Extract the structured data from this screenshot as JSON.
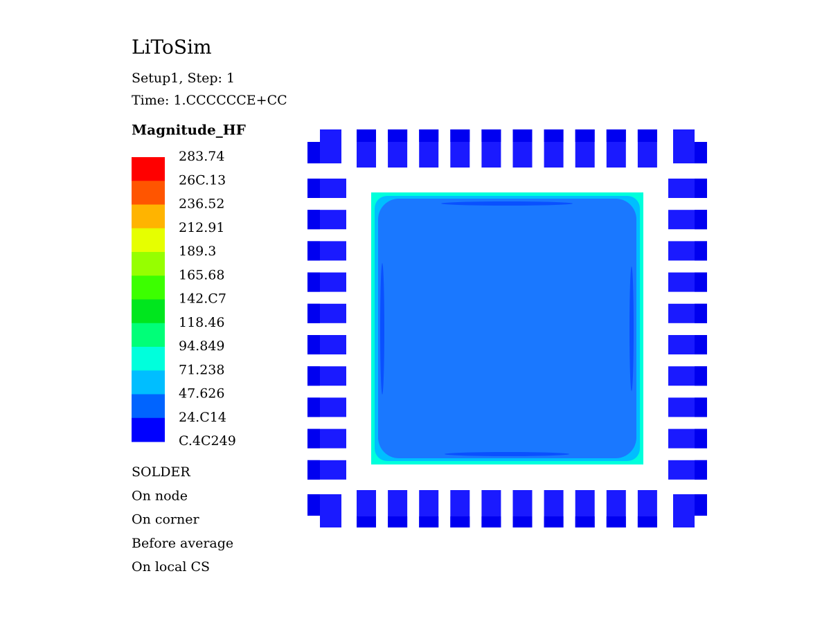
{
  "header": {
    "title": "LiToSim",
    "lines": [
      "Setup1, Step: 1",
      "Time: 1.CCCCCCE+CC"
    ]
  },
  "legend": {
    "title": "Magnitude_HF",
    "labels": [
      "283.74",
      "26C.13",
      "236.52",
      "212.91",
      "189.3",
      "165.68",
      "142.C7",
      "118.46",
      "94.849",
      "71.238",
      "47.626",
      "24.C14",
      "C.4C249"
    ],
    "colors": [
      "#ff0000",
      "#ff5500",
      "#ffb400",
      "#e6ff00",
      "#96ff00",
      "#3cff00",
      "#00e61e",
      "#00ff78",
      "#00ffdc",
      "#00beff",
      "#0064ff",
      "#0000ff"
    ]
  },
  "notes": [
    "SOLDER",
    "On node",
    "On corner",
    "Before average",
    "On local CS"
  ]
}
